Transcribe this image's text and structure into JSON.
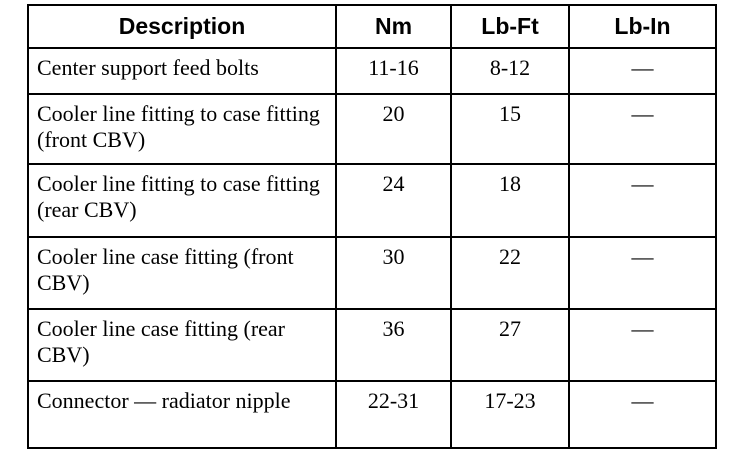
{
  "table": {
    "headers": [
      "Description",
      "Nm",
      "Lb-Ft",
      "Lb-In"
    ],
    "rows": [
      {
        "description": "Center support feed bolts",
        "nm": "11-16",
        "lbft": "8-12",
        "lbin": "—"
      },
      {
        "description": "Cooler line fitting to case fitting (front CBV)",
        "nm": "20",
        "lbft": "15",
        "lbin": "—"
      },
      {
        "description": "Cooler line fitting to case fitting (rear CBV)",
        "nm": "24",
        "lbft": "18",
        "lbin": "—"
      },
      {
        "description": "Cooler line case fitting (front CBV)",
        "nm": "30",
        "lbft": "22",
        "lbin": "—"
      },
      {
        "description": "Cooler line case fitting (rear CBV)",
        "nm": "36",
        "lbft": "27",
        "lbin": "—"
      },
      {
        "description": "Connector — radiator nipple",
        "nm": "22-31",
        "lbft": "17-23",
        "lbin": "—"
      }
    ]
  }
}
